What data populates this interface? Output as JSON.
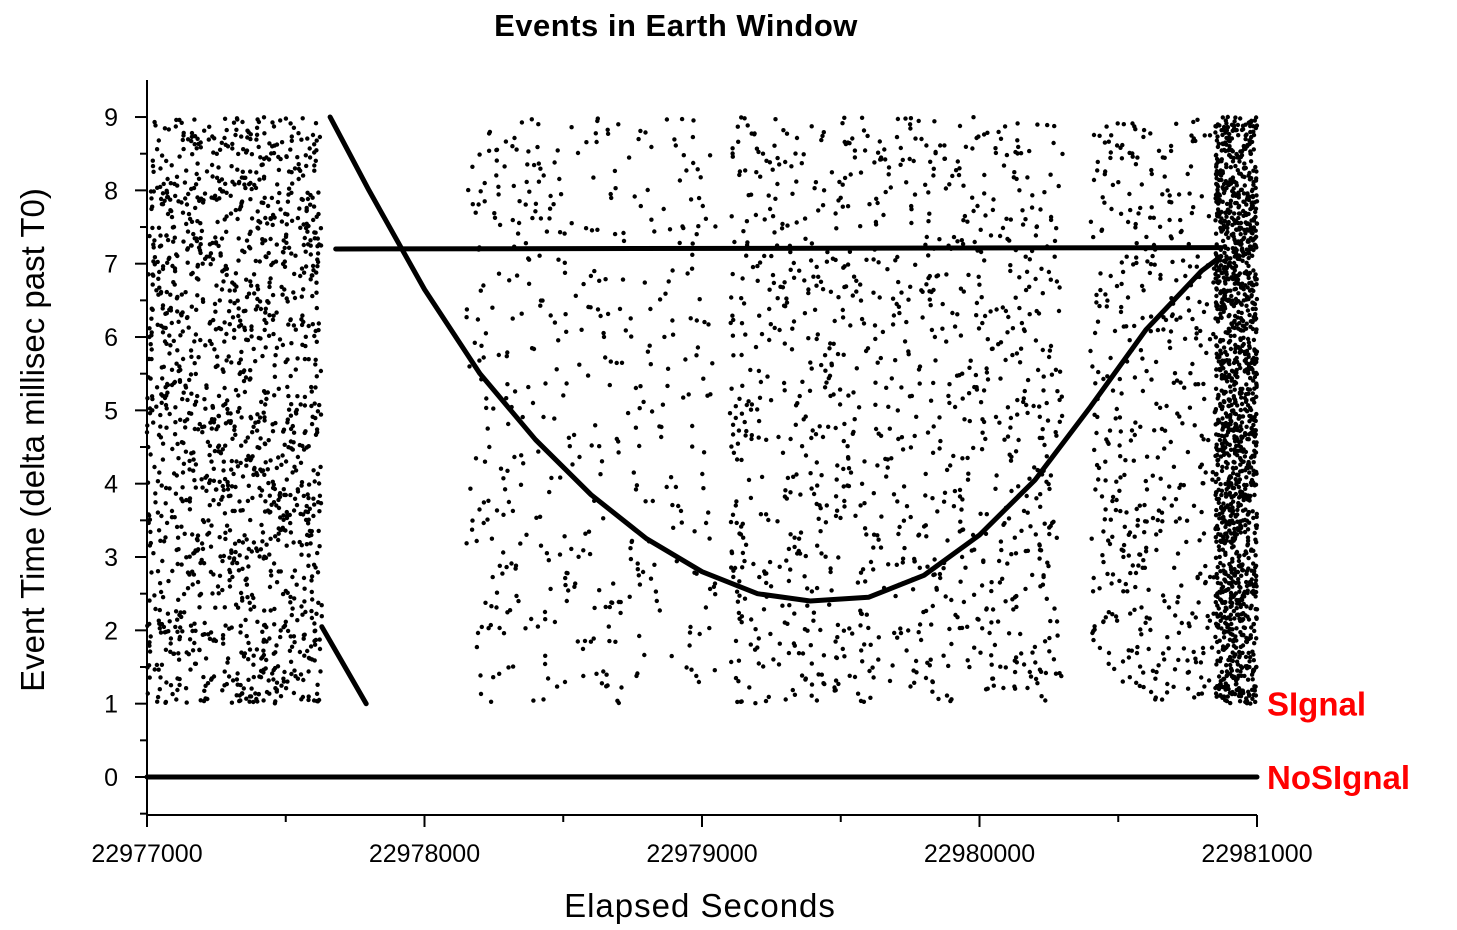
{
  "chart_data": {
    "type": "scatter",
    "title": "Events in Earth Window",
    "xlabel": "Elapsed Seconds",
    "ylabel": "Event Time (delta millisec past T0)",
    "xlim": [
      22977000,
      22981000
    ],
    "ylim": [
      -0.5,
      9.5
    ],
    "x_ticks": [
      22977000,
      22978000,
      22979000,
      22980000,
      22981000
    ],
    "x_tick_labels": [
      "22977000",
      "22978000",
      "22979000",
      "22980000",
      "22981000"
    ],
    "y_ticks": [
      0,
      1,
      2,
      3,
      4,
      5,
      6,
      7,
      8,
      9
    ],
    "y_tick_labels": [
      "0",
      "1",
      "2",
      "3",
      "4",
      "5",
      "6",
      "7",
      "8",
      "9"
    ],
    "grid": false,
    "legend": "none",
    "marker_color": "#000000",
    "annotation_color": "#ff0000",
    "annotations": [
      {
        "text": "SIgnal",
        "x": 22981000,
        "y": 1
      },
      {
        "text": "NoSIgnal",
        "x": 22981000,
        "y": 0
      }
    ],
    "series": [
      {
        "kind": "line",
        "x": [
          22977000,
          22981000
        ],
        "y": [
          0,
          0
        ]
      },
      {
        "kind": "line",
        "x": [
          22977660,
          22977800,
          22978000,
          22978200,
          22978400,
          22978600,
          22978800,
          22979000,
          22979200,
          22979390,
          22979600,
          22979800,
          22980000,
          22980200,
          22980400,
          22980600,
          22980800,
          22980870
        ],
        "y": [
          9.0,
          8.0,
          6.65,
          5.5,
          4.6,
          3.85,
          3.25,
          2.8,
          2.5,
          2.4,
          2.45,
          2.75,
          3.3,
          4.05,
          5.05,
          6.1,
          6.9,
          7.1
        ]
      },
      {
        "kind": "line",
        "x": [
          22977630,
          22977790
        ],
        "y": [
          2.05,
          1.0
        ]
      },
      {
        "kind": "line",
        "x": [
          22977680,
          22980870
        ],
        "y": [
          7.2,
          7.22
        ]
      },
      {
        "kind": "scatter-cluster",
        "x_range": [
          22977000,
          22977630
        ],
        "y_range": [
          1,
          9
        ],
        "density": "very high"
      },
      {
        "kind": "scatter-cluster",
        "x_range": [
          22978150,
          22979050
        ],
        "y_range": [
          1,
          9
        ],
        "density": "medium"
      },
      {
        "kind": "scatter-cluster",
        "x_range": [
          22979100,
          22980300
        ],
        "y_range": [
          1,
          9
        ],
        "density": "high"
      },
      {
        "kind": "scatter-cluster",
        "x_range": [
          22980400,
          22980850
        ],
        "y_range": [
          1,
          9
        ],
        "density": "medium"
      },
      {
        "kind": "scatter-cluster",
        "x_range": [
          22980850,
          22981000
        ],
        "y_range": [
          1,
          9
        ],
        "density": "very high"
      }
    ]
  }
}
